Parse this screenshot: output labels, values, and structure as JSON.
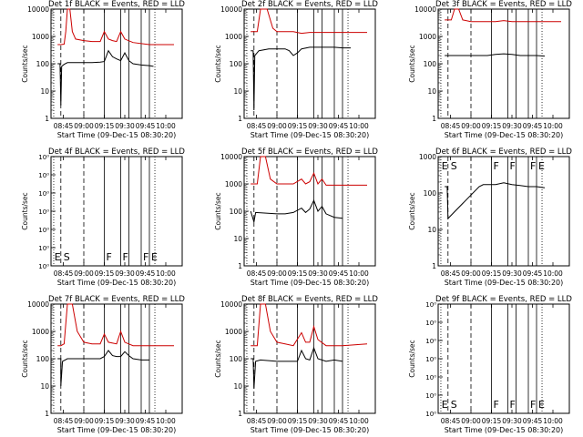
{
  "page": {
    "background": "#ffffff",
    "event_color": "#000000",
    "lld_color": "#cc0000"
  },
  "common": {
    "x_tick_labels": [
      "08:45",
      "09:00",
      "09:15",
      "09:30",
      "09:45",
      "10:00"
    ],
    "x_label": "Start Time (09-Dec-15 08:30:20)",
    "y_label": "Counts/sec",
    "y_tick_labels": [
      "1",
      "10",
      "100",
      "1000",
      "10000"
    ],
    "y_tick_labels_flat": [
      "10⁰",
      "10⁰",
      "10⁰",
      "10⁰",
      "10⁰",
      "10⁰"
    ],
    "y_tick_labels_empty": [
      "10⁰",
      "10⁰",
      "10⁰",
      "10⁰",
      "10⁰",
      "10⁰",
      "10⁰"
    ],
    "marker_labels": [
      "E",
      "S",
      "F",
      "F",
      "F",
      "E"
    ]
  },
  "chart_data": [
    {
      "type": "line",
      "title": "Det 1f BLACK = Events, RED = LLD",
      "xlabel": "Start Time (09-Dec-15 08:30:20)",
      "ylabel": "Counts/sec",
      "ylim": [
        1,
        10000
      ],
      "yscale": "log",
      "markers_visible": false,
      "series": [
        {
          "color": "#000000",
          "points": [
            [
              8.68,
              100
            ],
            [
              8.71,
              100
            ],
            [
              8.72,
              3
            ],
            [
              8.73,
              80
            ],
            [
              8.76,
              95
            ],
            [
              8.8,
              110
            ],
            [
              8.9,
              110
            ],
            [
              9.0,
              110
            ],
            [
              9.1,
              110
            ],
            [
              9.2,
              115
            ],
            [
              9.25,
              120
            ],
            [
              9.3,
              300
            ],
            [
              9.35,
              180
            ],
            [
              9.4,
              150
            ],
            [
              9.45,
              130
            ],
            [
              9.5,
              250
            ],
            [
              9.55,
              130
            ],
            [
              9.6,
              100
            ],
            [
              9.7,
              90
            ],
            [
              9.8,
              85
            ],
            [
              9.85,
              80
            ]
          ]
        },
        {
          "color": "#cc0000",
          "points": [
            [
              8.68,
              500
            ],
            [
              8.72,
              500
            ],
            [
              8.76,
              520
            ],
            [
              8.78,
              1500
            ],
            [
              8.8,
              10000
            ],
            [
              8.83,
              10000
            ],
            [
              8.86,
              1500
            ],
            [
              8.9,
              800
            ],
            [
              9.0,
              700
            ],
            [
              9.1,
              650
            ],
            [
              9.2,
              650
            ],
            [
              9.25,
              1500
            ],
            [
              9.3,
              800
            ],
            [
              9.35,
              700
            ],
            [
              9.4,
              650
            ],
            [
              9.45,
              1500
            ],
            [
              9.5,
              800
            ],
            [
              9.6,
              600
            ],
            [
              9.8,
              500
            ],
            [
              10.1,
              500
            ]
          ]
        }
      ]
    },
    {
      "type": "line",
      "title": "Det 2f BLACK = Events, RED = LLD",
      "xlabel": "Start Time (09-Dec-15 08:30:20)",
      "ylabel": "Counts/sec",
      "ylim": [
        1,
        10000
      ],
      "yscale": "log",
      "markers_visible": false,
      "series": [
        {
          "color": "#000000",
          "points": [
            [
              8.68,
              300
            ],
            [
              8.71,
              300
            ],
            [
              8.72,
              2
            ],
            [
              8.73,
              200
            ],
            [
              8.78,
              300
            ],
            [
              8.9,
              350
            ],
            [
              9.0,
              350
            ],
            [
              9.1,
              350
            ],
            [
              9.15,
              300
            ],
            [
              9.2,
              200
            ],
            [
              9.25,
              250
            ],
            [
              9.3,
              350
            ],
            [
              9.4,
              400
            ],
            [
              9.5,
              400
            ],
            [
              9.6,
              400
            ],
            [
              9.7,
              400
            ],
            [
              9.8,
              380
            ],
            [
              9.9,
              380
            ]
          ]
        },
        {
          "color": "#cc0000",
          "points": [
            [
              8.68,
              1500
            ],
            [
              8.72,
              1500
            ],
            [
              8.76,
              1500
            ],
            [
              8.8,
              10000
            ],
            [
              8.88,
              10000
            ],
            [
              8.95,
              2000
            ],
            [
              9.0,
              1500
            ],
            [
              9.1,
              1500
            ],
            [
              9.2,
              1500
            ],
            [
              9.3,
              1300
            ],
            [
              9.4,
              1400
            ],
            [
              9.5,
              1400
            ],
            [
              9.7,
              1400
            ],
            [
              10.1,
              1400
            ]
          ]
        }
      ]
    },
    {
      "type": "line",
      "title": "Det 3f BLACK = Events, RED = LLD",
      "xlabel": "Start Time (09-Dec-15 08:30:20)",
      "ylabel": "Counts/sec",
      "ylim": [
        1,
        10000
      ],
      "yscale": "log",
      "markers_visible": false,
      "series": [
        {
          "color": "#000000",
          "points": [
            [
              8.68,
              200
            ],
            [
              8.7,
              200
            ],
            [
              8.72,
              200
            ],
            [
              8.8,
              200
            ],
            [
              8.9,
              200
            ],
            [
              9.0,
              200
            ],
            [
              9.1,
              200
            ],
            [
              9.2,
              200
            ],
            [
              9.3,
              220
            ],
            [
              9.4,
              230
            ],
            [
              9.5,
              220
            ],
            [
              9.6,
              200
            ],
            [
              9.7,
              200
            ],
            [
              9.8,
              200
            ],
            [
              9.9,
              190
            ]
          ]
        },
        {
          "color": "#cc0000",
          "points": [
            [
              8.68,
              4000
            ],
            [
              8.72,
              4000
            ],
            [
              8.76,
              4000
            ],
            [
              8.8,
              10000
            ],
            [
              8.85,
              10000
            ],
            [
              8.9,
              4000
            ],
            [
              9.0,
              3500
            ],
            [
              9.1,
              3500
            ],
            [
              9.2,
              3500
            ],
            [
              9.3,
              3500
            ],
            [
              9.4,
              3800
            ],
            [
              9.5,
              3500
            ],
            [
              9.7,
              3500
            ],
            [
              10.1,
              3500
            ]
          ]
        }
      ]
    },
    {
      "type": "line",
      "title": "Det 4f BLACK = Events, RED = LLD",
      "xlabel": "Start Time (09-Dec-15 08:30:20)",
      "ylabel": "Counts/sec",
      "ylim": null,
      "yscale": "log",
      "markers_visible": true,
      "series": []
    },
    {
      "type": "line",
      "title": "Det 5f BLACK = Events, RED = LLD",
      "xlabel": "Start Time (09-Dec-15 08:30:20)",
      "ylabel": "Counts/sec",
      "ylim": [
        1,
        10000
      ],
      "yscale": "log",
      "markers_visible": false,
      "series": [
        {
          "color": "#000000",
          "points": [
            [
              8.68,
              100
            ],
            [
              8.72,
              40
            ],
            [
              8.74,
              90
            ],
            [
              9.0,
              80
            ],
            [
              9.1,
              80
            ],
            [
              9.2,
              90
            ],
            [
              9.3,
              130
            ],
            [
              9.35,
              90
            ],
            [
              9.4,
              120
            ],
            [
              9.45,
              250
            ],
            [
              9.5,
              100
            ],
            [
              9.55,
              150
            ],
            [
              9.6,
              80
            ],
            [
              9.7,
              60
            ],
            [
              9.8,
              55
            ]
          ]
        },
        {
          "color": "#cc0000",
          "points": [
            [
              8.68,
              1000
            ],
            [
              8.72,
              1000
            ],
            [
              8.76,
              1000
            ],
            [
              8.8,
              10000
            ],
            [
              8.86,
              10000
            ],
            [
              8.92,
              1500
            ],
            [
              9.0,
              1000
            ],
            [
              9.1,
              1000
            ],
            [
              9.2,
              1000
            ],
            [
              9.3,
              1500
            ],
            [
              9.35,
              1000
            ],
            [
              9.4,
              1200
            ],
            [
              9.45,
              2500
            ],
            [
              9.5,
              1000
            ],
            [
              9.55,
              1500
            ],
            [
              9.6,
              900
            ],
            [
              9.8,
              900
            ],
            [
              10.1,
              900
            ]
          ]
        }
      ]
    },
    {
      "type": "line",
      "title": "Det 6f BLACK = Events, RED = LLD",
      "xlabel": "Start Time (09-Dec-15 08:30:20)",
      "ylabel": "Counts/sec",
      "ylim": [
        1,
        1000
      ],
      "yscale": "log",
      "markers_visible": true,
      "series": [
        {
          "color": "#000000",
          "points": [
            [
              8.68,
              150
            ],
            [
              8.71,
              150
            ],
            [
              8.72,
              20
            ],
            [
              9.1,
              150
            ],
            [
              9.15,
              170
            ],
            [
              9.3,
              170
            ],
            [
              9.4,
              190
            ],
            [
              9.5,
              170
            ],
            [
              9.6,
              160
            ],
            [
              9.7,
              150
            ],
            [
              9.8,
              150
            ],
            [
              9.9,
              140
            ]
          ]
        }
      ]
    },
    {
      "type": "line",
      "title": "Det 7f BLACK = Events, RED = LLD",
      "xlabel": "Start Time (09-Dec-15 08:30:20)",
      "ylabel": "Counts/sec",
      "ylim": [
        1,
        10000
      ],
      "yscale": "log",
      "markers_visible": false,
      "series": [
        {
          "color": "#000000",
          "points": [
            [
              8.68,
              100
            ],
            [
              8.72,
              100
            ],
            [
              8.72,
              10
            ],
            [
              8.74,
              80
            ],
            [
              8.8,
              100
            ],
            [
              9.0,
              100
            ],
            [
              9.1,
              100
            ],
            [
              9.2,
              100
            ],
            [
              9.25,
              120
            ],
            [
              9.3,
              200
            ],
            [
              9.35,
              130
            ],
            [
              9.4,
              120
            ],
            [
              9.45,
              120
            ],
            [
              9.5,
              180
            ],
            [
              9.55,
              130
            ],
            [
              9.6,
              100
            ],
            [
              9.7,
              90
            ],
            [
              9.8,
              90
            ]
          ]
        },
        {
          "color": "#cc0000",
          "points": [
            [
              8.68,
              300
            ],
            [
              8.72,
              300
            ],
            [
              8.76,
              350
            ],
            [
              8.8,
              10000
            ],
            [
              8.86,
              10000
            ],
            [
              8.92,
              1000
            ],
            [
              9.0,
              400
            ],
            [
              9.1,
              350
            ],
            [
              9.2,
              350
            ],
            [
              9.25,
              800
            ],
            [
              9.3,
              400
            ],
            [
              9.4,
              350
            ],
            [
              9.45,
              1000
            ],
            [
              9.5,
              400
            ],
            [
              9.6,
              300
            ],
            [
              9.8,
              300
            ],
            [
              10.1,
              300
            ]
          ]
        }
      ]
    },
    {
      "type": "line",
      "title": "Det 8f BLACK = Events, RED = LLD",
      "xlabel": "Start Time (09-Dec-15 08:30:20)",
      "ylabel": "Counts/sec",
      "ylim": [
        1,
        10000
      ],
      "yscale": "log",
      "markers_visible": false,
      "series": [
        {
          "color": "#000000",
          "points": [
            [
              8.68,
              100
            ],
            [
              8.71,
              100
            ],
            [
              8.72,
              8
            ],
            [
              8.74,
              80
            ],
            [
              8.8,
              90
            ],
            [
              9.0,
              80
            ],
            [
              9.1,
              80
            ],
            [
              9.2,
              80
            ],
            [
              9.25,
              80
            ],
            [
              9.3,
              200
            ],
            [
              9.35,
              100
            ],
            [
              9.4,
              90
            ],
            [
              9.45,
              250
            ],
            [
              9.5,
              100
            ],
            [
              9.6,
              80
            ],
            [
              9.7,
              90
            ],
            [
              9.8,
              80
            ]
          ]
        },
        {
          "color": "#cc0000",
          "points": [
            [
              8.68,
              300
            ],
            [
              8.72,
              300
            ],
            [
              8.76,
              300
            ],
            [
              8.8,
              10000
            ],
            [
              8.86,
              10000
            ],
            [
              8.92,
              1000
            ],
            [
              9.0,
              400
            ],
            [
              9.1,
              350
            ],
            [
              9.2,
              300
            ],
            [
              9.3,
              900
            ],
            [
              9.35,
              400
            ],
            [
              9.4,
              400
            ],
            [
              9.45,
              1500
            ],
            [
              9.5,
              500
            ],
            [
              9.6,
              300
            ],
            [
              9.8,
              300
            ],
            [
              10.1,
              350
            ]
          ]
        }
      ]
    },
    {
      "type": "line",
      "title": "Det 9f BLACK = Events, RED = LLD",
      "xlabel": "Start Time (09-Dec-15 08:30:20)",
      "ylabel": "Counts/sec",
      "ylim": null,
      "yscale": "log",
      "markers_visible": true,
      "series": []
    }
  ]
}
